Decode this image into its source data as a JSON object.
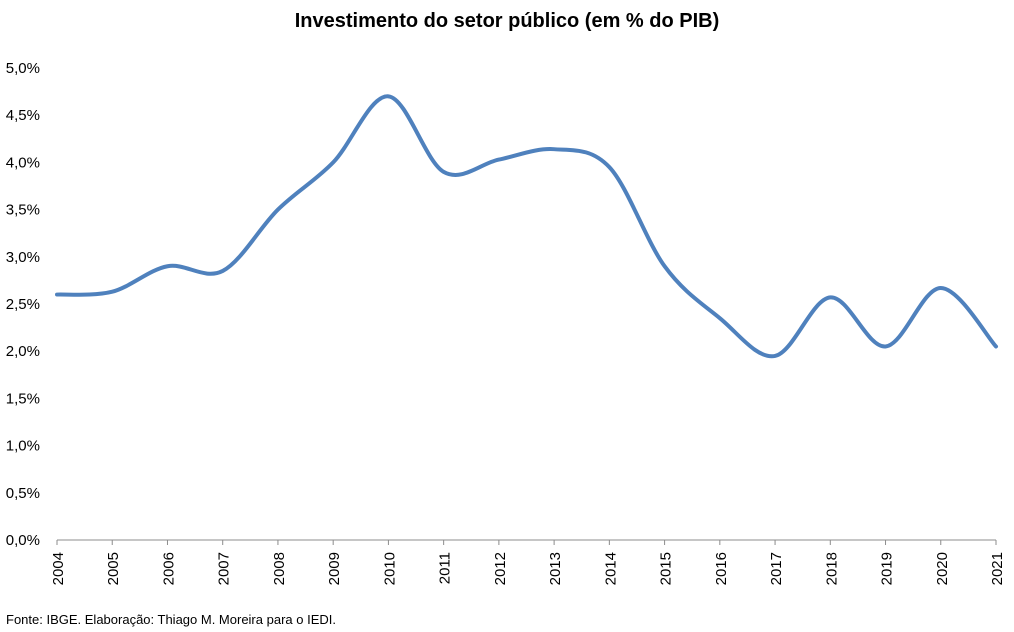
{
  "chart_data": {
    "type": "line",
    "title": "Investimento do setor público (em % do PIB)",
    "xlabel": "",
    "ylabel": "",
    "x": [
      "2004",
      "2005",
      "2006",
      "2007",
      "2008",
      "2009",
      "2010",
      "2011",
      "2012",
      "2013",
      "2014",
      "2015",
      "2016",
      "2017",
      "2018",
      "2019",
      "2020",
      "2021"
    ],
    "series": [
      {
        "values": [
          2.6,
          2.63,
          2.9,
          2.85,
          3.5,
          4.0,
          4.7,
          3.9,
          4.03,
          4.14,
          3.95,
          2.9,
          2.35,
          1.95,
          2.57,
          2.05,
          2.67,
          2.05
        ]
      }
    ],
    "ylim": [
      0,
      5
    ],
    "yticks": [
      "0,0%",
      "0,5%",
      "1,0%",
      "1,5%",
      "2,0%",
      "2,5%",
      "3,0%",
      "3,5%",
      "4,0%",
      "4,5%",
      "5,0%"
    ],
    "ytick_values": [
      0,
      0.5,
      1,
      1.5,
      2,
      2.5,
      3,
      3.5,
      4,
      4.5,
      5
    ],
    "grid": false,
    "legend": "none",
    "line_color": "#4F81BD"
  },
  "footer": {
    "source": "Fonte: IBGE. Elaboração: Thiago M. Moreira para o IEDI."
  }
}
